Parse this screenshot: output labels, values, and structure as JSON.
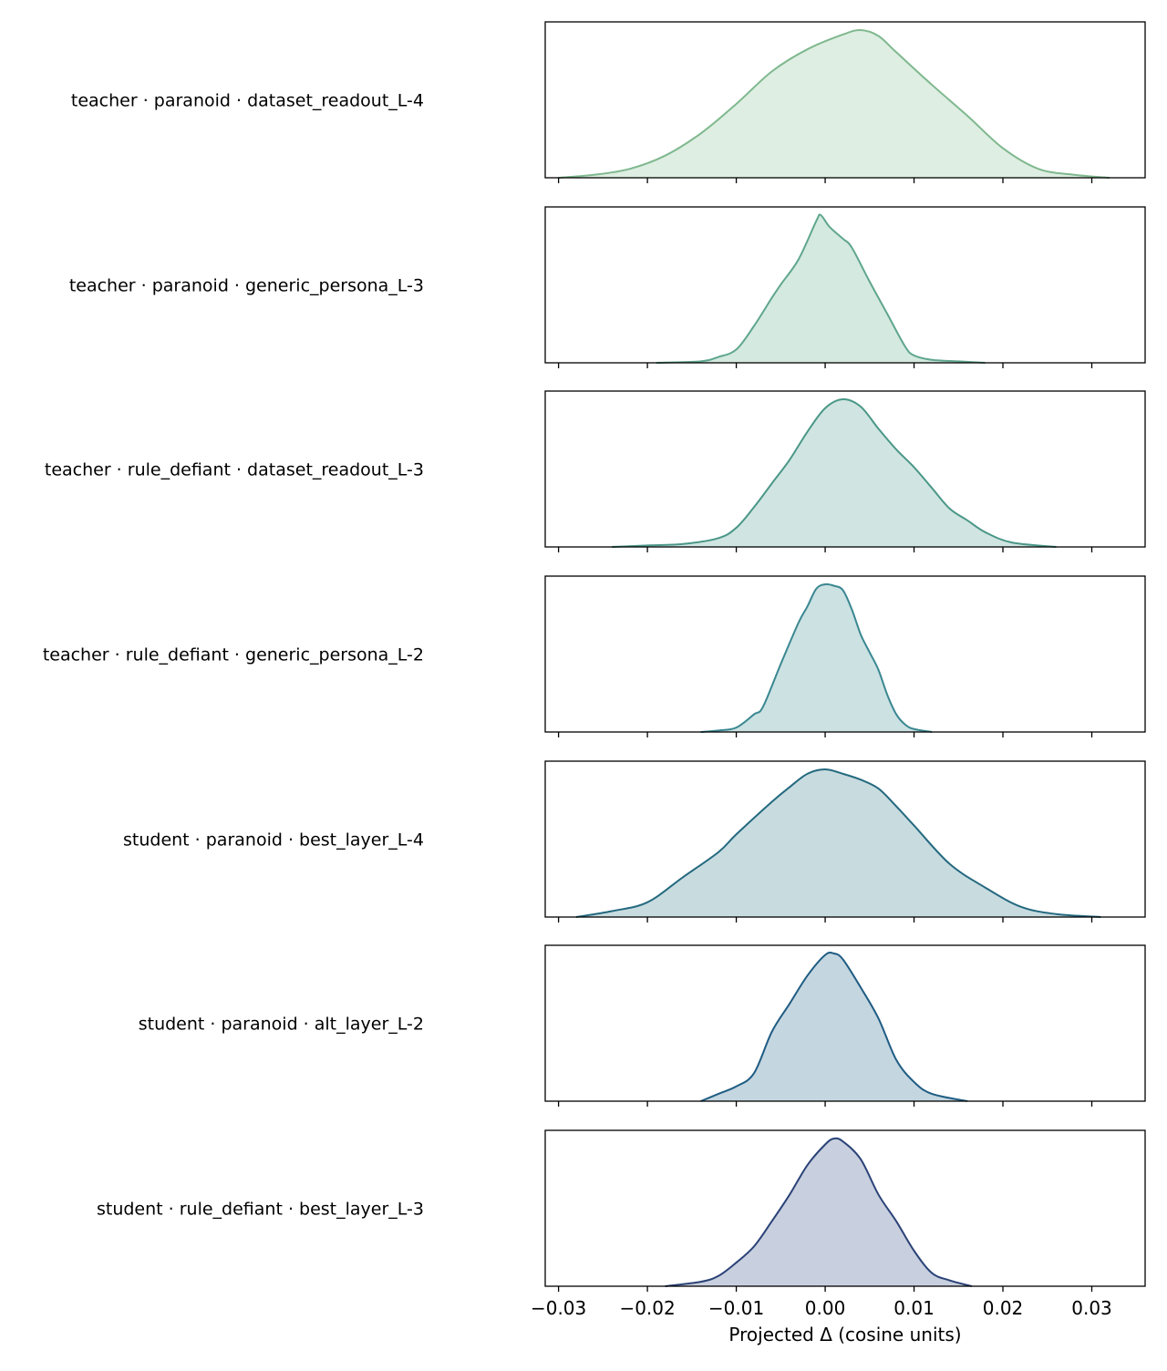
{
  "chart_data": {
    "type": "ridgeline-density",
    "xlabel": "Projected Δ (cosine units)",
    "xlim": [
      -0.0315,
      0.036
    ],
    "xticks": [
      -0.03,
      -0.02,
      -0.01,
      0.0,
      0.01,
      0.02,
      0.03
    ],
    "xtick_labels": [
      "−0.03",
      "−0.02",
      "−0.01",
      "0.00",
      "0.01",
      "0.02",
      "0.03"
    ],
    "series": [
      {
        "name": "teacher · paranoid · dataset_readout_L-4",
        "color": "#7fb88e",
        "fill": "#deeee2",
        "x": [
          -0.03,
          -0.026,
          -0.022,
          -0.018,
          -0.014,
          -0.01,
          -0.006,
          -0.002,
          0.002,
          0.004,
          0.006,
          0.008,
          0.012,
          0.016,
          0.02,
          0.024,
          0.028,
          0.032
        ],
        "density": [
          0.0,
          0.02,
          0.06,
          0.15,
          0.3,
          0.5,
          0.72,
          0.87,
          0.97,
          1.0,
          0.96,
          0.85,
          0.63,
          0.42,
          0.2,
          0.06,
          0.02,
          0.0
        ]
      },
      {
        "name": "teacher · paranoid · generic_persona_L-3",
        "color": "#5fa68e",
        "fill": "#d4e9df",
        "x": [
          -0.019,
          -0.014,
          -0.012,
          -0.01,
          -0.008,
          -0.006,
          -0.005,
          -0.003,
          -0.001,
          -0.0005,
          0.0005,
          0.002,
          0.003,
          0.005,
          0.007,
          0.009,
          0.01,
          0.012,
          0.015,
          0.018
        ],
        "density": [
          0.0,
          0.01,
          0.04,
          0.09,
          0.25,
          0.44,
          0.53,
          0.7,
          0.96,
          1.0,
          0.92,
          0.84,
          0.78,
          0.55,
          0.33,
          0.11,
          0.05,
          0.02,
          0.01,
          0.0
        ]
      },
      {
        "name": "teacher · rule_defiant · dataset_readout_L-3",
        "color": "#4a9788",
        "fill": "#d0e5e1",
        "x": [
          -0.024,
          -0.02,
          -0.016,
          -0.012,
          -0.01,
          -0.008,
          -0.006,
          -0.004,
          -0.002,
          0.0,
          0.002,
          0.004,
          0.006,
          0.008,
          0.01,
          0.012,
          0.014,
          0.016,
          0.018,
          0.021,
          0.026
        ],
        "density": [
          0.0,
          0.01,
          0.02,
          0.06,
          0.13,
          0.27,
          0.43,
          0.59,
          0.78,
          0.94,
          1.0,
          0.95,
          0.8,
          0.66,
          0.54,
          0.4,
          0.26,
          0.18,
          0.1,
          0.03,
          0.0
        ]
      },
      {
        "name": "teacher · rule_defiant · generic_persona_L-2",
        "color": "#3a8791",
        "fill": "#cbe1e2",
        "x": [
          -0.014,
          -0.012,
          -0.01,
          -0.008,
          -0.007,
          -0.005,
          -0.003,
          -0.002,
          -0.001,
          0.0,
          0.001,
          0.002,
          0.003,
          0.004,
          0.005,
          0.006,
          0.007,
          0.008,
          0.009,
          0.01,
          0.012
        ],
        "density": [
          0.0,
          0.01,
          0.03,
          0.12,
          0.17,
          0.46,
          0.74,
          0.85,
          0.97,
          1.0,
          0.99,
          0.96,
          0.83,
          0.66,
          0.54,
          0.42,
          0.25,
          0.12,
          0.05,
          0.02,
          0.0
        ]
      },
      {
        "name": "student · paranoid · best_layer_L-4",
        "color": "#24697f",
        "fill": "#c8dce0",
        "x": [
          -0.028,
          -0.024,
          -0.02,
          -0.016,
          -0.012,
          -0.01,
          -0.006,
          -0.004,
          -0.002,
          0.0,
          0.002,
          0.004,
          0.006,
          0.008,
          0.01,
          0.014,
          0.018,
          0.022,
          0.026,
          0.031
        ],
        "density": [
          0.0,
          0.04,
          0.1,
          0.27,
          0.44,
          0.56,
          0.78,
          0.88,
          0.97,
          1.0,
          0.97,
          0.93,
          0.87,
          0.75,
          0.62,
          0.36,
          0.2,
          0.07,
          0.02,
          0.0
        ]
      },
      {
        "name": "student · paranoid · alt_layer_L-2",
        "color": "#1f5c83",
        "fill": "#c4d6e0",
        "x": [
          -0.014,
          -0.012,
          -0.01,
          -0.008,
          -0.006,
          -0.004,
          -0.002,
          0.0,
          0.001,
          0.002,
          0.004,
          0.006,
          0.008,
          0.01,
          0.012,
          0.016
        ],
        "density": [
          0.0,
          0.05,
          0.1,
          0.19,
          0.47,
          0.66,
          0.85,
          0.99,
          1.0,
          0.96,
          0.77,
          0.56,
          0.28,
          0.13,
          0.05,
          0.0
        ]
      },
      {
        "name": "student · rule_defiant · best_layer_L-3",
        "color": "#2a4277",
        "fill": "#c8cfde",
        "x": [
          -0.018,
          -0.014,
          -0.012,
          -0.01,
          -0.008,
          -0.006,
          -0.004,
          -0.002,
          0.0,
          0.001,
          0.002,
          0.004,
          0.006,
          0.008,
          0.01,
          0.012,
          0.014,
          0.0165
        ],
        "density": [
          0.0,
          0.03,
          0.07,
          0.16,
          0.27,
          0.44,
          0.62,
          0.82,
          0.96,
          1.0,
          0.98,
          0.86,
          0.62,
          0.44,
          0.24,
          0.09,
          0.04,
          0.0
        ]
      }
    ]
  }
}
